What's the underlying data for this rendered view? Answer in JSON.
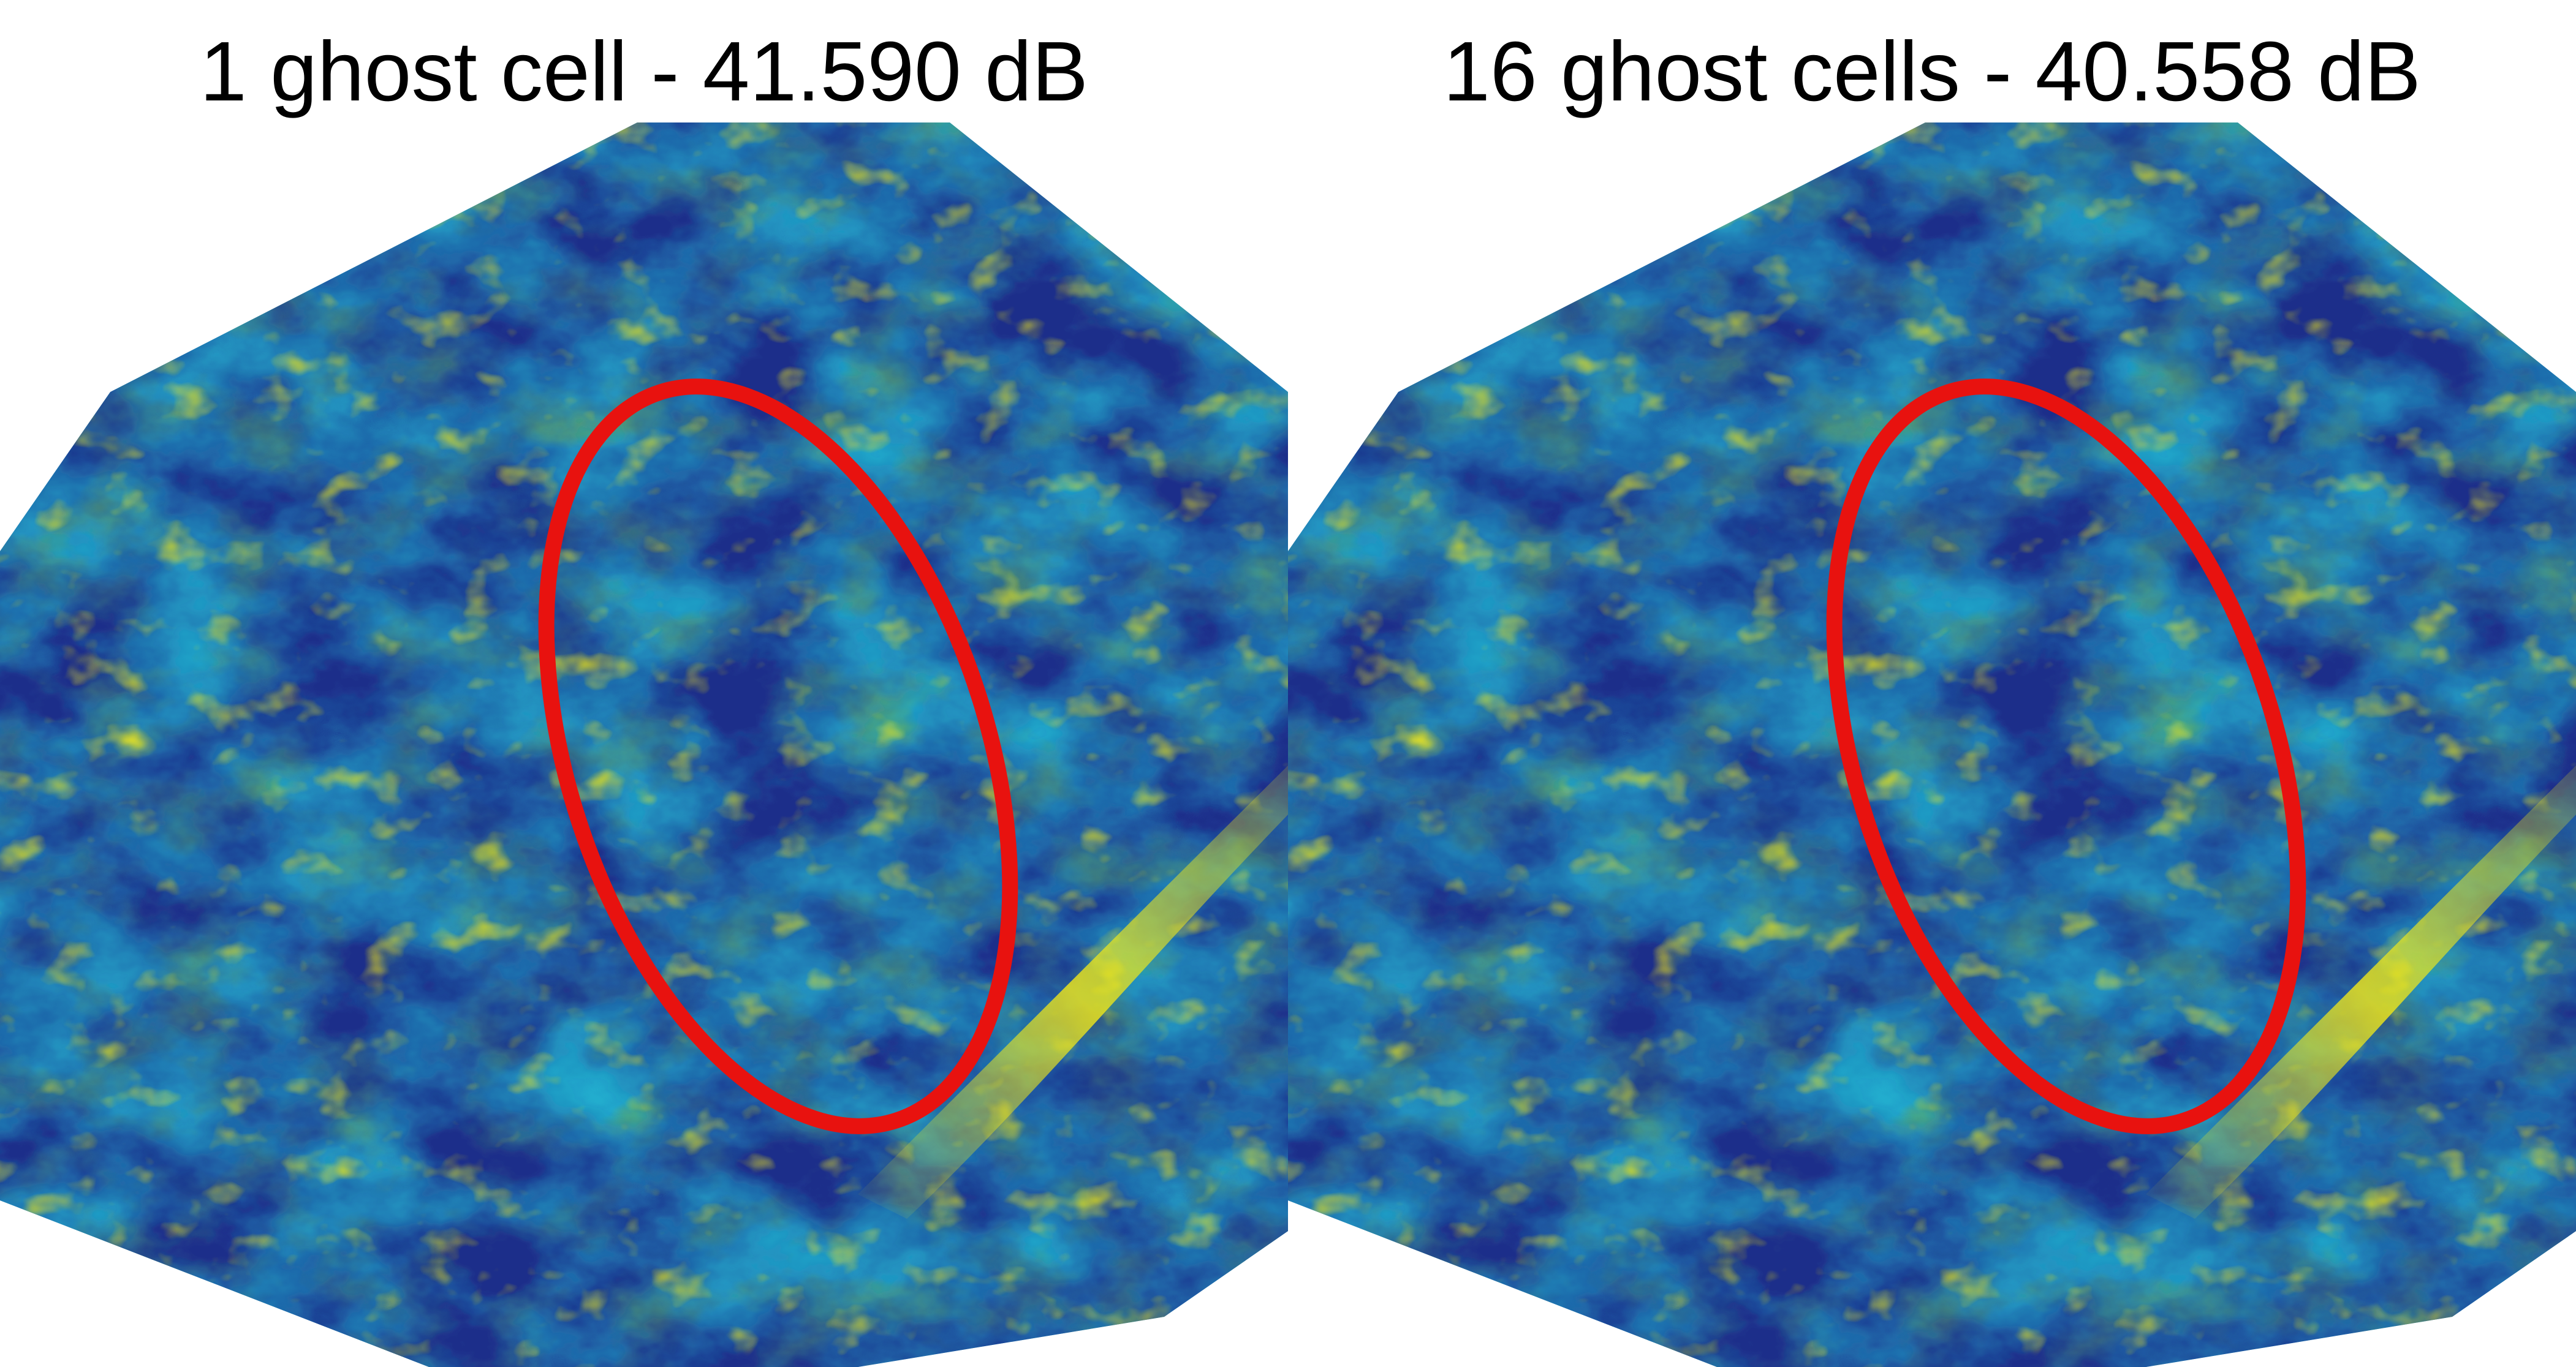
{
  "panels": [
    {
      "title": "1 ghost cell - 41.590 dB"
    },
    {
      "title": "16 ghost cells - 40.558 dB"
    }
  ],
  "colors": {
    "deep_blue": "#1b2d8a",
    "mid_blue": "#2f63b8",
    "cyan": "#1ec6d6",
    "green": "#6fb24a",
    "yellow": "#f3e917",
    "highlight_ellipse": "#e8120f"
  }
}
